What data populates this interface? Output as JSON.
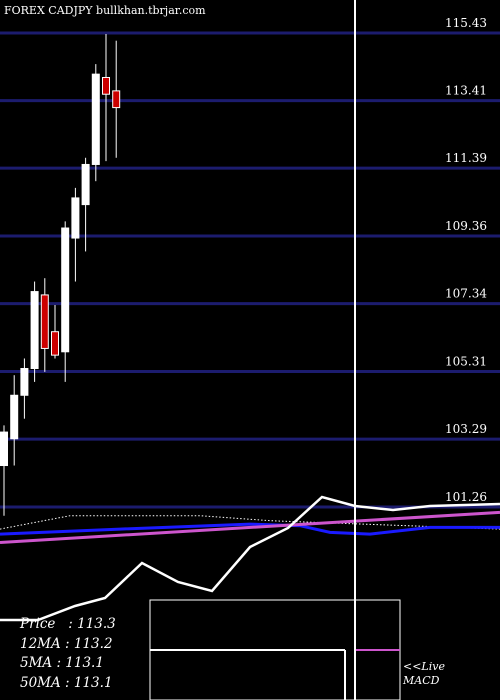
{
  "header": {
    "title": "FOREX  CADJPY bullkhan.tbrjar.com"
  },
  "info": {
    "price": "Price   : 113.3",
    "ma12": "12MA : 113.2",
    "ma5": "5MA : 113.1",
    "ma50": "50MA : 113.1"
  },
  "indicator": {
    "live": "<<Live",
    "macd": "MACD"
  },
  "colors": {
    "background": "#000000",
    "grid": "#1c1c6e",
    "bull": "#ffffff",
    "bear": "#cc0000",
    "ma_blue": "#1a1aff",
    "ma_pink": "#cc55cc",
    "crosshair": "#ffffff"
  },
  "chart_data": {
    "type": "candlestick",
    "title": "FOREX  CADJPY bullkhan.tbrjar.com",
    "y_ticks": [
      115.43,
      113.41,
      111.39,
      109.36,
      107.34,
      105.31,
      103.29,
      101.26
    ],
    "ylim": [
      100.4,
      116.15
    ],
    "grid": true,
    "candles": [
      {
        "open": 102.5,
        "high": 103.7,
        "low": 101.0,
        "close": 103.5
      },
      {
        "open": 103.3,
        "high": 105.2,
        "low": 102.5,
        "close": 104.6
      },
      {
        "open": 104.6,
        "high": 105.7,
        "low": 103.9,
        "close": 105.4
      },
      {
        "open": 105.4,
        "high": 108.0,
        "low": 105.0,
        "close": 107.7
      },
      {
        "open": 107.6,
        "high": 108.1,
        "low": 105.3,
        "close": 106.0
      },
      {
        "open": 106.5,
        "high": 107.3,
        "low": 105.7,
        "close": 105.8
      },
      {
        "open": 105.9,
        "high": 109.8,
        "low": 105.0,
        "close": 109.6
      },
      {
        "open": 109.3,
        "high": 110.8,
        "low": 108.0,
        "close": 110.5
      },
      {
        "open": 110.3,
        "high": 111.7,
        "low": 108.9,
        "close": 111.5
      },
      {
        "open": 111.5,
        "high": 114.5,
        "low": 111.0,
        "close": 114.2
      },
      {
        "open": 114.1,
        "high": 115.4,
        "low": 111.6,
        "close": 113.6
      },
      {
        "open": 113.7,
        "high": 115.2,
        "low": 111.7,
        "close": 113.2
      }
    ],
    "ma_series": [
      {
        "color": "#ffffff",
        "style": "dotted",
        "x": [
          0,
          500
        ],
        "y": [
          100.6,
          100.6
        ],
        "bulge": [
          [
            70,
            101.0
          ],
          [
            200,
            101.0
          ],
          [
            270,
            100.85
          ]
        ]
      },
      {
        "color": "#1a1aff",
        "x": [
          0,
          120,
          250,
          300,
          330,
          370,
          430,
          500
        ],
        "y": [
          100.45,
          100.6,
          100.75,
          100.7,
          100.5,
          100.45,
          100.65,
          100.65
        ]
      },
      {
        "color": "#cc55cc",
        "x": [
          0,
          500
        ],
        "y": [
          100.2,
          101.1
        ]
      }
    ],
    "macd_line": {
      "color": "#ffffff",
      "points": [
        [
          0,
          620
        ],
        [
          38,
          620
        ],
        [
          75,
          606
        ],
        [
          105,
          598
        ],
        [
          142,
          563
        ],
        [
          178,
          582
        ],
        [
          212,
          591
        ],
        [
          250,
          547
        ],
        [
          288,
          528
        ],
        [
          322,
          497
        ],
        [
          355,
          506
        ],
        [
          393,
          510
        ],
        [
          430,
          506
        ],
        [
          500,
          504
        ]
      ]
    },
    "crosshair_x": 355
  }
}
